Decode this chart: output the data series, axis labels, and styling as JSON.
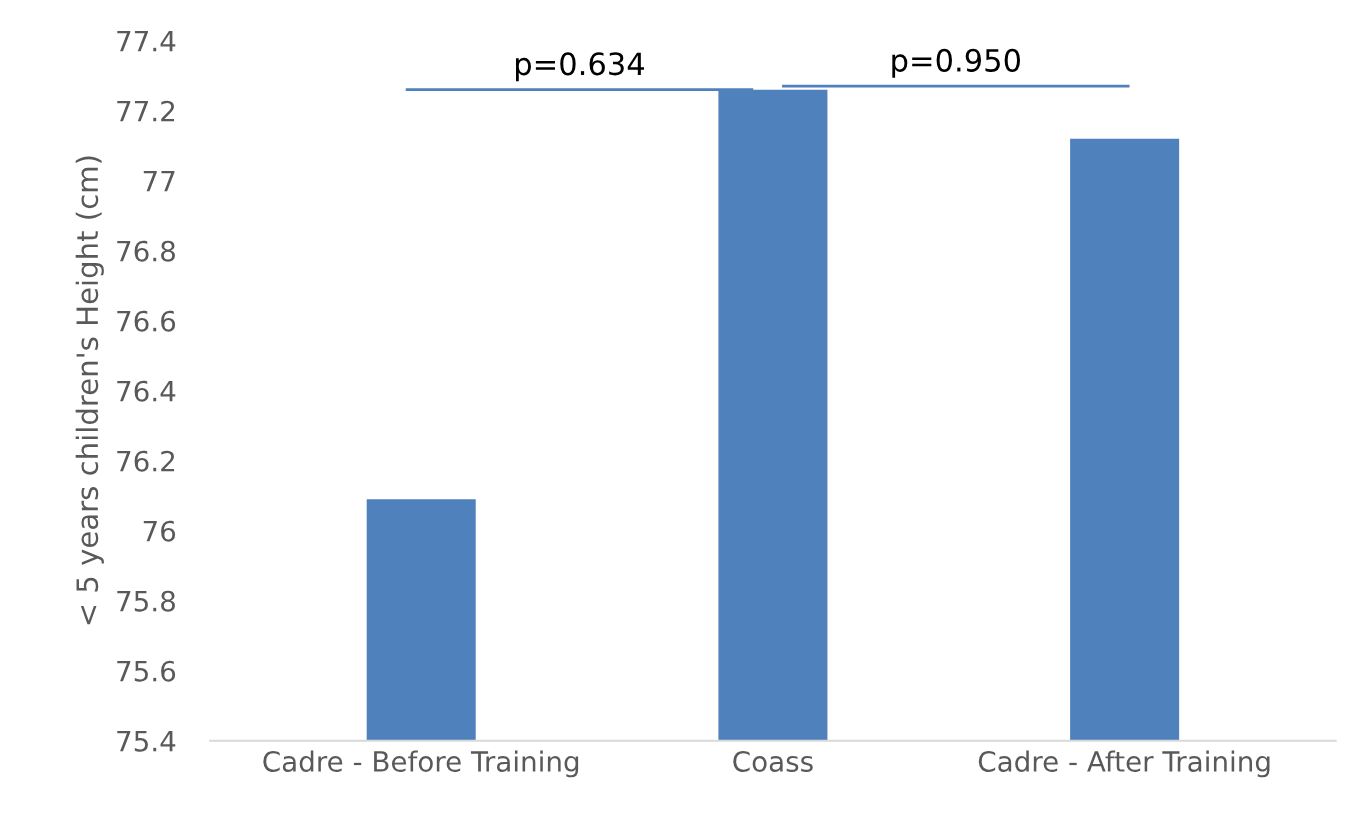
{
  "chart_data": {
    "type": "bar",
    "ylabel": "< 5 years children's Height (cm)",
    "categories": [
      "Cadre - Before Training",
      "Coass",
      "Cadre - After Training"
    ],
    "values": [
      76.09,
      77.26,
      77.12
    ],
    "color": "#4f81bd",
    "ylim": [
      75.4,
      77.4
    ],
    "yticks": [
      {
        "value": 75.4,
        "label": "75.4"
      },
      {
        "value": 75.6,
        "label": "75.6"
      },
      {
        "value": 75.8,
        "label": "75.8"
      },
      {
        "value": 76,
        "label": "76"
      },
      {
        "value": 76.2,
        "label": "76.2"
      },
      {
        "value": 76.4,
        "label": "76.4"
      },
      {
        "value": 76.6,
        "label": "76.6"
      },
      {
        "value": 76.8,
        "label": "76.8"
      },
      {
        "value": 77,
        "label": "77"
      },
      {
        "value": 77.2,
        "label": "77.2"
      },
      {
        "value": 77.4,
        "label": "77.4"
      }
    ],
    "grid": false,
    "annotations": [
      "p=0.634",
      "p=0.950"
    ]
  }
}
